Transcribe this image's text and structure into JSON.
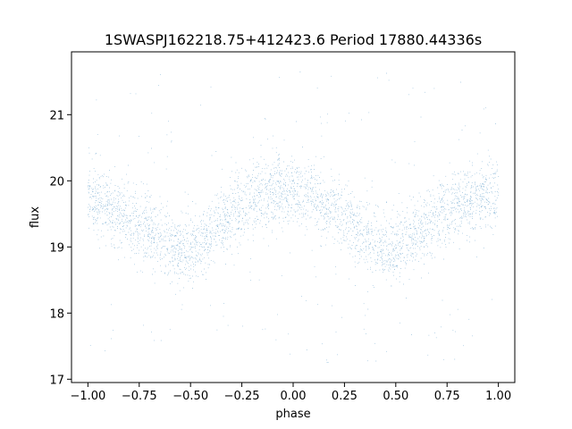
{
  "chart_data": {
    "type": "scatter",
    "title": "1SWASPJ162218.75+412423.6 Period 17880.44336s",
    "xlabel": "phase",
    "ylabel": "flux",
    "xlim": [
      -1.08,
      1.08
    ],
    "ylim": [
      16.95,
      21.95
    ],
    "xticks": [
      -1.0,
      -0.75,
      -0.5,
      -0.25,
      0.0,
      0.25,
      0.5,
      0.75,
      1.0
    ],
    "xtick_labels": [
      "−1.00",
      "−0.75",
      "−0.50",
      "−0.25",
      "0.00",
      "0.25",
      "0.50",
      "0.75",
      "1.00"
    ],
    "yticks": [
      17,
      18,
      19,
      20,
      21
    ],
    "ytick_labels": [
      "17",
      "18",
      "19",
      "20",
      "21"
    ],
    "grid": false,
    "marker_color": "#1f77b4",
    "series": [
      {
        "x": [
          -1.0,
          -0.9,
          -0.8,
          -0.7,
          -0.6,
          -0.55,
          -0.5,
          -0.4,
          -0.3,
          -0.2,
          -0.1,
          0.0,
          0.1,
          0.2,
          0.3,
          0.4,
          0.45,
          0.5,
          0.6,
          0.7,
          0.8,
          0.9,
          1.0
        ],
        "y": [
          19.7,
          19.6,
          19.45,
          19.25,
          19.0,
          18.9,
          18.95,
          19.2,
          19.5,
          19.75,
          19.85,
          19.85,
          19.75,
          19.55,
          19.3,
          19.05,
          18.95,
          18.95,
          19.2,
          19.45,
          19.65,
          19.75,
          19.75
        ]
      }
    ]
  }
}
